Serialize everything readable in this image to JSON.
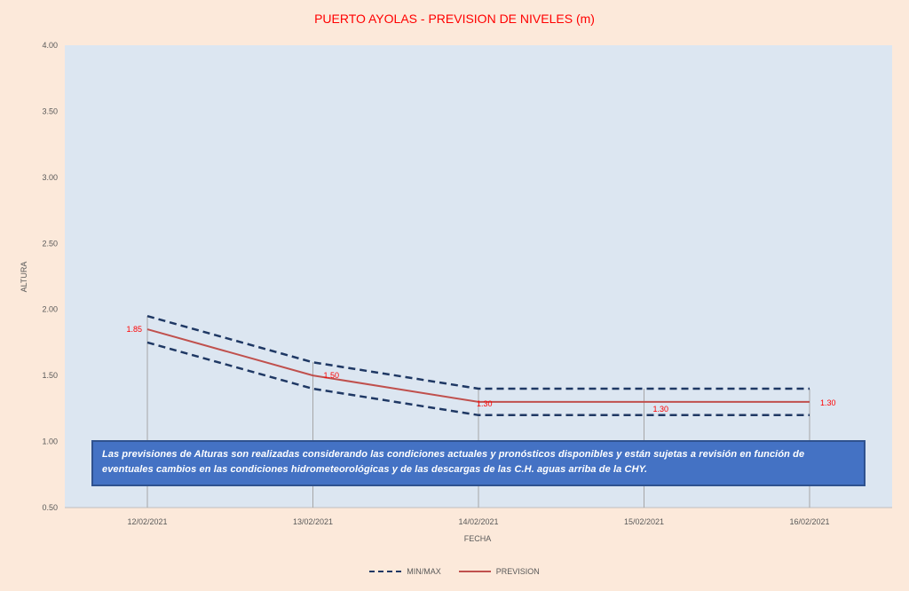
{
  "chart_data": {
    "type": "line",
    "title": "PUERTO AYOLAS - PREVISION DE NIVELES (m)",
    "xlabel": "FECHA",
    "ylabel": "ALTURA",
    "categories": [
      "12/02/2021",
      "13/02/2021",
      "14/02/2021",
      "15/02/2021",
      "16/02/2021"
    ],
    "ylim": [
      0.5,
      4.0
    ],
    "yticks": [
      "0.50",
      "1.00",
      "1.50",
      "2.00",
      "2.50",
      "3.00",
      "3.50",
      "4.00"
    ],
    "series": [
      {
        "name": "PREVISION",
        "values": [
          1.85,
          1.5,
          1.3,
          1.3,
          1.3
        ],
        "labels": [
          "1.85",
          "1.50",
          "1.30",
          "1.30",
          "1.30"
        ],
        "color": "#c0504d",
        "style": "solid"
      },
      {
        "name": "MIN/MAX",
        "upper": [
          1.95,
          1.6,
          1.4,
          1.4,
          1.4
        ],
        "lower": [
          1.75,
          1.4,
          1.2,
          1.2,
          1.2
        ],
        "color": "#1f3864",
        "style": "dashed"
      }
    ],
    "grid": "vertical",
    "legend_position": "bottom",
    "plot_background": "#dce6f1",
    "page_background": "#fce9da",
    "title_color": "#ff0000",
    "annotation": "Las previsiones de Alturas son realizadas considerando las condiciones actuales y pronósticos disponibles y están sujetas a revisión en función de eventuales cambios en las condiciones hidrometeorológicas y de las descargas de las C.H. aguas arriba de la CHY."
  },
  "legend": {
    "minmax_label": "MIN/MAX",
    "prevision_label": "PREVISION"
  }
}
